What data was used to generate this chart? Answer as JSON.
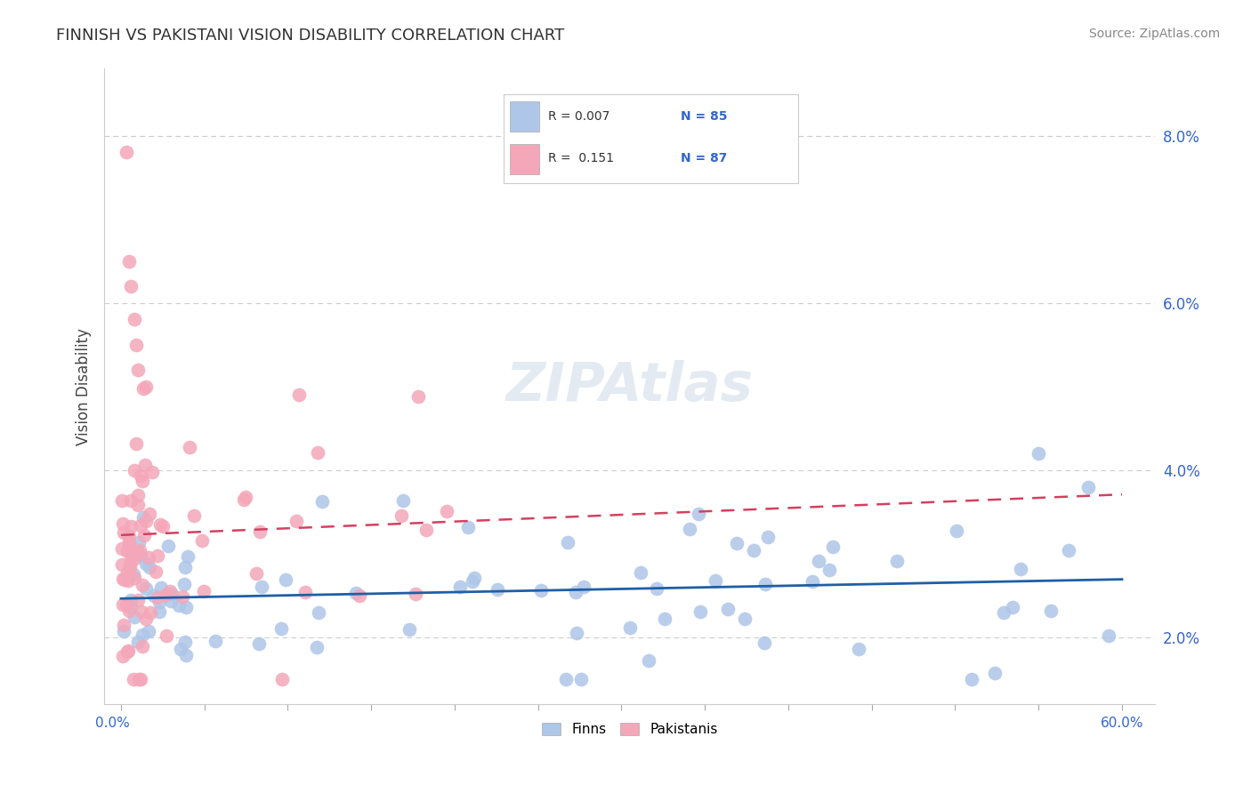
{
  "title": "FINNISH VS PAKISTANI VISION DISABILITY CORRELATION CHART",
  "source": "Source: ZipAtlas.com",
  "ylabel": "Vision Disability",
  "xlim": [
    0.0,
    60.0
  ],
  "ylim": [
    1.2,
    8.8
  ],
  "yticks": [
    2.0,
    4.0,
    6.0,
    8.0
  ],
  "ytick_labels": [
    "2.0%",
    "4.0%",
    "6.0%",
    "8.0%"
  ],
  "finn_color": "#aec6e8",
  "pak_color": "#f4a7b9",
  "finn_line_color": "#1f5fa6",
  "pak_line_color": "#d44060",
  "watermark": "ZIPAtlas",
  "legend_items": [
    {
      "label": "R = 0.007   N = 85",
      "color": "#aec6e8"
    },
    {
      "label": "R =  0.151   N = 87",
      "color": "#f4a7b9"
    }
  ]
}
